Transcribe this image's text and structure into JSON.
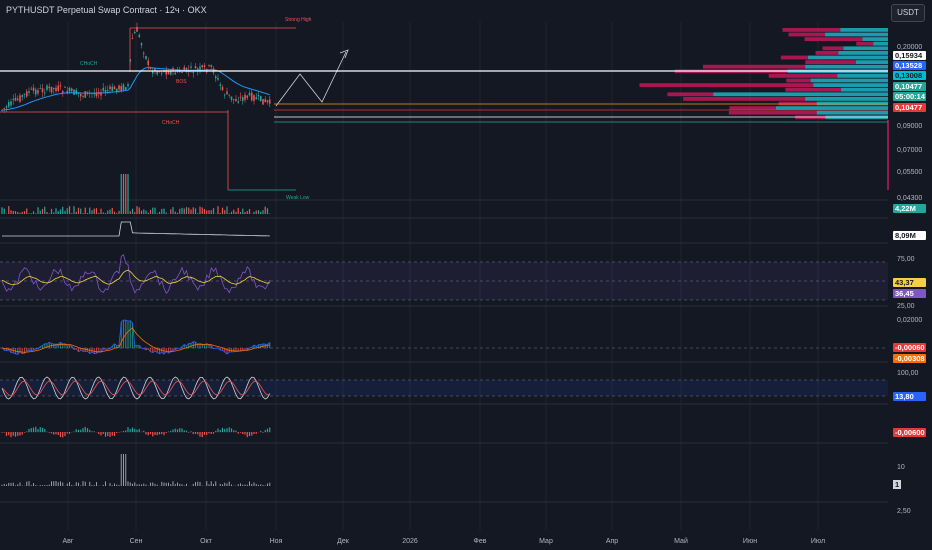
{
  "header": {
    "title": "PYTHUSDT Perpetual Swap Contract · 12ч · OKX",
    "currency": "USDT"
  },
  "colors": {
    "background": "#141823",
    "grid": "#1f2330",
    "up": "#26a69a",
    "down": "#ef5350",
    "ema": "#2196f3",
    "rsi": "#7e57c2",
    "rsi_ma": "#f5d142",
    "macd": "#2962ff",
    "signal": "#ff6d00",
    "vp_buy": "#1fb3c6",
    "vp_sell": "#c2185b"
  },
  "price_axis": {
    "ticks": [
      "0,20000",
      "0,09000",
      "0,07000",
      "0,05500",
      "0,04300"
    ],
    "badges": [
      {
        "label": "0,15934",
        "bg": "#ffffff",
        "fg": "#131722"
      },
      {
        "label": "0,13528",
        "bg": "#2962ff",
        "fg": "#ffffff"
      },
      {
        "label": "0,13008",
        "bg": "#00bcd4",
        "fg": "#131722"
      },
      {
        "label": "0,10477",
        "bg": "#26a69a",
        "fg": "#ffffff"
      },
      {
        "label": "05:00:14",
        "bg": "#26a69a",
        "fg": "#ffffff"
      },
      {
        "label": "0,10477",
        "bg": "#e53935",
        "fg": "#ffffff"
      }
    ]
  },
  "volume_axis": {
    "badge": "4,22M"
  },
  "obv_axis": {
    "badge": "8,09M"
  },
  "rsi_axis": {
    "ticks": [
      "75,00",
      "25,00"
    ],
    "badges": [
      "43,37",
      "36,45"
    ]
  },
  "macd_axis": {
    "ticks": [
      "0,02000"
    ],
    "badges": [
      "-0,00060",
      "-0,00308"
    ]
  },
  "stoch_axis": {
    "ticks": [
      "100,00"
    ],
    "badge": "13,80"
  },
  "osc_axis": {
    "badge": "-0,00600"
  },
  "bottom_axis": {
    "ticks": [
      "10",
      "2,50"
    ],
    "badge": "1"
  },
  "time_axis": [
    "Авг",
    "Сен",
    "Окт",
    "Ноя",
    "Дек",
    "2026",
    "Фев",
    "Мар",
    "Апр",
    "Май",
    "Июн",
    "Июл"
  ],
  "annotations": {
    "strong_high": "Strong High",
    "weak_low": "Weak Low",
    "choch": "CHoCH",
    "bos": "BOS"
  },
  "chart_data": {
    "type": "line",
    "symbol": "PYTHUSDT",
    "timeframe": "12h",
    "x": [
      "Авг",
      "Сен",
      "Окт",
      "Ноя"
    ],
    "series": [
      {
        "values": [
          0.122,
          0.152,
          0.128,
          0.104
        ]
      }
    ],
    "ylim": [
      0.043,
      0.2
    ],
    "levels": [
      0.15934,
      0.13528,
      0.13008,
      0.10477
    ]
  }
}
